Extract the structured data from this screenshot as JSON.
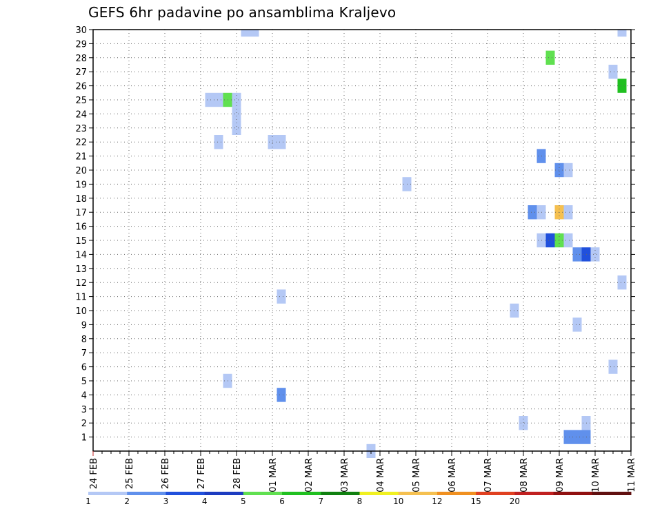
{
  "chart_data": {
    "type": "heatmap",
    "title": "GEFS 6hr padavine po ansamblima Kraljevo",
    "x_tick_labels": [
      "24 FEB",
      "25 FEB",
      "26 FEB",
      "27 FEB",
      "28 FEB",
      "01 MAR",
      "02 MAR",
      "03 MAR",
      "04 MAR",
      "05 MAR",
      "06 MAR",
      "07 MAR",
      "08 MAR",
      "09 MAR",
      "10 MAR",
      "11 MAR"
    ],
    "x_unit": "days since 24 FEB 00z (6-hourly steps)",
    "xlim": [
      0,
      15
    ],
    "y_tick_labels": [
      1,
      2,
      3,
      4,
      5,
      6,
      7,
      8,
      9,
      10,
      11,
      12,
      13,
      14,
      15,
      16,
      17,
      18,
      19,
      20,
      21,
      22,
      23,
      24,
      25,
      26,
      27,
      28,
      29,
      30
    ],
    "ylim": [
      0,
      30
    ],
    "grid": true,
    "colorbar": {
      "labels": [
        "1",
        "2",
        "3",
        "4",
        "5",
        "6",
        "7",
        "8",
        "10",
        "12",
        "15",
        "20"
      ],
      "colors": [
        "#b4c8f5",
        "#6090ec",
        "#2050dc",
        "#1c3cc0",
        "#60e050",
        "#20c020",
        "#108010",
        "#f0f020",
        "#f5c050",
        "#f09020",
        "#e04020",
        "#c02020",
        "#901010",
        "#601010"
      ]
    },
    "cells": [
      {
        "x": 4.25,
        "member": 30,
        "cls": 0
      },
      {
        "x": 4.5,
        "member": 30,
        "cls": 0
      },
      {
        "x": 14.75,
        "member": 30,
        "cls": 0
      },
      {
        "x": 12.75,
        "member": 28,
        "cls": 4
      },
      {
        "x": 14.5,
        "member": 27,
        "cls": 0
      },
      {
        "x": 14.75,
        "member": 26,
        "cls": 5
      },
      {
        "x": 3.25,
        "member": 25,
        "cls": 0
      },
      {
        "x": 3.5,
        "member": 25,
        "cls": 0
      },
      {
        "x": 3.75,
        "member": 25,
        "cls": 4
      },
      {
        "x": 4.0,
        "member": 25,
        "cls": 0
      },
      {
        "x": 4.0,
        "member": 24,
        "cls": 0
      },
      {
        "x": 4.0,
        "member": 23,
        "cls": 0
      },
      {
        "x": 3.5,
        "member": 22,
        "cls": 0
      },
      {
        "x": 5.0,
        "member": 22,
        "cls": 0
      },
      {
        "x": 5.25,
        "member": 22,
        "cls": 0
      },
      {
        "x": 12.5,
        "member": 21,
        "cls": 1
      },
      {
        "x": 13.0,
        "member": 20,
        "cls": 1
      },
      {
        "x": 13.25,
        "member": 20,
        "cls": 0
      },
      {
        "x": 8.75,
        "member": 19,
        "cls": 0
      },
      {
        "x": 12.25,
        "member": 17,
        "cls": 1
      },
      {
        "x": 12.5,
        "member": 17,
        "cls": 0
      },
      {
        "x": 13.0,
        "member": 17,
        "cls": 8
      },
      {
        "x": 13.25,
        "member": 17,
        "cls": 0
      },
      {
        "x": 12.5,
        "member": 15,
        "cls": 0
      },
      {
        "x": 12.75,
        "member": 15,
        "cls": 2
      },
      {
        "x": 13.0,
        "member": 15,
        "cls": 4
      },
      {
        "x": 13.25,
        "member": 15,
        "cls": 0
      },
      {
        "x": 13.5,
        "member": 14,
        "cls": 1
      },
      {
        "x": 13.75,
        "member": 14,
        "cls": 2
      },
      {
        "x": 14.0,
        "member": 14,
        "cls": 0
      },
      {
        "x": 14.75,
        "member": 12,
        "cls": 0
      },
      {
        "x": 5.25,
        "member": 11,
        "cls": 0
      },
      {
        "x": 11.75,
        "member": 10,
        "cls": 0
      },
      {
        "x": 13.5,
        "member": 9,
        "cls": 0
      },
      {
        "x": 14.5,
        "member": 6,
        "cls": 0
      },
      {
        "x": 3.75,
        "member": 5,
        "cls": 0
      },
      {
        "x": 5.25,
        "member": 4,
        "cls": 1
      },
      {
        "x": 12.0,
        "member": 2,
        "cls": 0
      },
      {
        "x": 13.75,
        "member": 2,
        "cls": 0
      },
      {
        "x": 13.25,
        "member": 1,
        "cls": 1
      },
      {
        "x": 13.5,
        "member": 1,
        "cls": 1
      },
      {
        "x": 13.75,
        "member": 1,
        "cls": 1
      },
      {
        "x": 7.75,
        "member": 0,
        "cls": 0
      }
    ]
  }
}
